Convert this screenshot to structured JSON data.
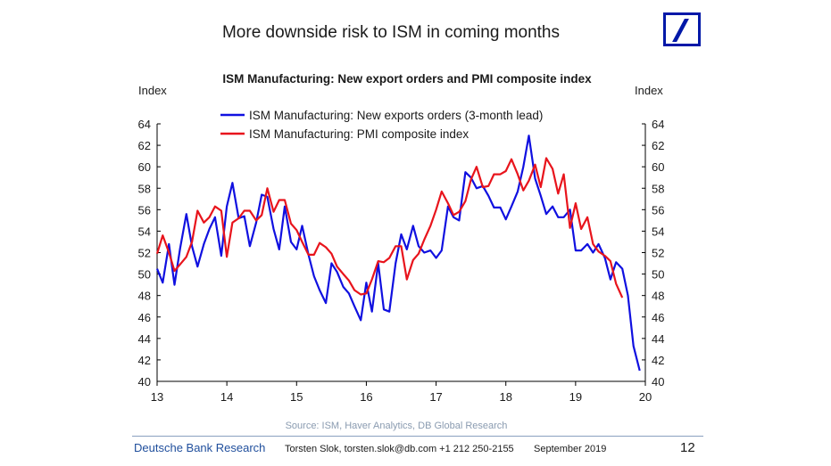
{
  "slide": {
    "title": "More downside risk to ISM in coming months",
    "page_number": "12"
  },
  "footer": {
    "brand": "Deutsche Bank Research",
    "contact": "Torsten Slok, torsten.slok@db.com  +1 212 250-2155",
    "date": "September 2019",
    "source": "Source: ISM, Haver Analytics, DB Global Research"
  },
  "colors": {
    "blue_series": "#1010e0",
    "red_series": "#e8141c",
    "brand_blue": "#0018a8"
  },
  "chart_data": {
    "type": "line",
    "title": "ISM Manufacturing: New export orders and PMI composite index",
    "ylabel_left": "Index",
    "ylabel_right": "Index",
    "ylim": [
      40,
      64
    ],
    "yticks": [
      40,
      42,
      44,
      46,
      48,
      50,
      52,
      54,
      56,
      58,
      60,
      62,
      64
    ],
    "xlim": [
      2013,
      2020
    ],
    "xticks": [
      {
        "value": 2013,
        "label": "13"
      },
      {
        "value": 2014,
        "label": "14"
      },
      {
        "value": 2015,
        "label": "15"
      },
      {
        "value": 2016,
        "label": "16"
      },
      {
        "value": 2017,
        "label": "17"
      },
      {
        "value": 2018,
        "label": "18"
      },
      {
        "value": 2019,
        "label": "19"
      },
      {
        "value": 2020,
        "label": "20"
      }
    ],
    "grid": false,
    "legend_position": "top-left",
    "series": [
      {
        "name": "ISM Manufacturing: New exports orders (3-month lead)",
        "color": "#1010e0",
        "points": [
          [
            2013.0,
            50.5
          ],
          [
            2013.08,
            49.2
          ],
          [
            2013.17,
            52.8
          ],
          [
            2013.25,
            49.0
          ],
          [
            2013.33,
            52.4
          ],
          [
            2013.42,
            55.6
          ],
          [
            2013.5,
            52.6
          ],
          [
            2013.58,
            50.7
          ],
          [
            2013.67,
            52.8
          ],
          [
            2013.75,
            54.2
          ],
          [
            2013.83,
            55.3
          ],
          [
            2013.92,
            51.7
          ],
          [
            2014.0,
            56.3
          ],
          [
            2014.08,
            58.5
          ],
          [
            2014.17,
            55.2
          ],
          [
            2014.25,
            55.4
          ],
          [
            2014.33,
            52.6
          ],
          [
            2014.42,
            54.8
          ],
          [
            2014.5,
            57.4
          ],
          [
            2014.58,
            57.2
          ],
          [
            2014.67,
            54.2
          ],
          [
            2014.75,
            52.3
          ],
          [
            2014.83,
            56.3
          ],
          [
            2014.92,
            53.0
          ],
          [
            2015.0,
            52.3
          ],
          [
            2015.08,
            54.5
          ],
          [
            2015.17,
            51.8
          ],
          [
            2015.25,
            49.8
          ],
          [
            2015.33,
            48.5
          ],
          [
            2015.42,
            47.3
          ],
          [
            2015.5,
            51.0
          ],
          [
            2015.58,
            50.2
          ],
          [
            2015.67,
            48.8
          ],
          [
            2015.75,
            48.2
          ],
          [
            2015.83,
            47.0
          ],
          [
            2015.92,
            45.7
          ],
          [
            2016.0,
            49.2
          ],
          [
            2016.08,
            46.5
          ],
          [
            2016.17,
            51.0
          ],
          [
            2016.25,
            46.7
          ],
          [
            2016.33,
            46.5
          ],
          [
            2016.42,
            51.0
          ],
          [
            2016.5,
            53.7
          ],
          [
            2016.58,
            52.3
          ],
          [
            2016.67,
            54.5
          ],
          [
            2016.75,
            52.6
          ],
          [
            2016.83,
            52.0
          ],
          [
            2016.92,
            52.2
          ],
          [
            2017.0,
            51.5
          ],
          [
            2017.08,
            52.2
          ],
          [
            2017.17,
            56.3
          ],
          [
            2017.25,
            55.3
          ],
          [
            2017.33,
            55.0
          ],
          [
            2017.42,
            59.5
          ],
          [
            2017.5,
            59.0
          ],
          [
            2017.58,
            58.0
          ],
          [
            2017.67,
            58.2
          ],
          [
            2017.75,
            57.3
          ],
          [
            2017.83,
            56.2
          ],
          [
            2017.92,
            56.2
          ],
          [
            2018.0,
            55.1
          ],
          [
            2018.08,
            56.3
          ],
          [
            2018.17,
            57.7
          ],
          [
            2018.25,
            60.0
          ],
          [
            2018.33,
            62.9
          ],
          [
            2018.42,
            58.9
          ],
          [
            2018.5,
            57.3
          ],
          [
            2018.58,
            55.6
          ],
          [
            2018.67,
            56.3
          ],
          [
            2018.75,
            55.3
          ],
          [
            2018.83,
            55.3
          ],
          [
            2018.92,
            56.0
          ],
          [
            2019.0,
            52.2
          ],
          [
            2019.08,
            52.2
          ],
          [
            2019.17,
            52.8
          ],
          [
            2019.25,
            52.0
          ],
          [
            2019.33,
            52.8
          ],
          [
            2019.42,
            51.5
          ],
          [
            2019.5,
            49.5
          ],
          [
            2019.58,
            51.1
          ],
          [
            2019.67,
            50.5
          ],
          [
            2019.75,
            48.0
          ],
          [
            2019.83,
            43.3
          ],
          [
            2019.92,
            41.0
          ]
        ]
      },
      {
        "name": "ISM Manufacturing: PMI composite index",
        "color": "#e8141c",
        "points": [
          [
            2013.0,
            51.9
          ],
          [
            2013.08,
            53.6
          ],
          [
            2013.17,
            52.0
          ],
          [
            2013.25,
            50.3
          ],
          [
            2013.33,
            50.9
          ],
          [
            2013.42,
            51.6
          ],
          [
            2013.5,
            53.0
          ],
          [
            2013.58,
            55.9
          ],
          [
            2013.67,
            54.8
          ],
          [
            2013.75,
            55.3
          ],
          [
            2013.83,
            56.3
          ],
          [
            2013.92,
            55.9
          ],
          [
            2014.0,
            51.6
          ],
          [
            2014.08,
            54.8
          ],
          [
            2014.17,
            55.2
          ],
          [
            2014.25,
            55.9
          ],
          [
            2014.33,
            55.9
          ],
          [
            2014.42,
            55.0
          ],
          [
            2014.5,
            55.5
          ],
          [
            2014.58,
            58.0
          ],
          [
            2014.67,
            55.8
          ],
          [
            2014.75,
            56.9
          ],
          [
            2014.83,
            56.9
          ],
          [
            2014.92,
            54.7
          ],
          [
            2015.0,
            54.1
          ],
          [
            2015.08,
            53.0
          ],
          [
            2015.17,
            51.8
          ],
          [
            2015.25,
            51.8
          ],
          [
            2015.33,
            52.9
          ],
          [
            2015.42,
            52.5
          ],
          [
            2015.5,
            51.9
          ],
          [
            2015.58,
            50.7
          ],
          [
            2015.67,
            50.0
          ],
          [
            2015.75,
            49.4
          ],
          [
            2015.83,
            48.5
          ],
          [
            2015.92,
            48.1
          ],
          [
            2016.0,
            48.2
          ],
          [
            2016.08,
            49.5
          ],
          [
            2016.17,
            51.2
          ],
          [
            2016.25,
            51.1
          ],
          [
            2016.33,
            51.5
          ],
          [
            2016.42,
            52.6
          ],
          [
            2016.5,
            52.6
          ],
          [
            2016.58,
            49.5
          ],
          [
            2016.67,
            51.3
          ],
          [
            2016.75,
            51.9
          ],
          [
            2016.83,
            53.2
          ],
          [
            2016.92,
            54.5
          ],
          [
            2017.0,
            56.0
          ],
          [
            2017.08,
            57.7
          ],
          [
            2017.17,
            56.6
          ],
          [
            2017.25,
            55.5
          ],
          [
            2017.33,
            55.8
          ],
          [
            2017.42,
            56.8
          ],
          [
            2017.5,
            58.8
          ],
          [
            2017.58,
            60.0
          ],
          [
            2017.67,
            58.1
          ],
          [
            2017.75,
            58.2
          ],
          [
            2017.83,
            59.3
          ],
          [
            2017.92,
            59.3
          ],
          [
            2018.0,
            59.6
          ],
          [
            2018.08,
            60.7
          ],
          [
            2018.17,
            59.3
          ],
          [
            2018.25,
            57.8
          ],
          [
            2018.33,
            58.7
          ],
          [
            2018.42,
            60.2
          ],
          [
            2018.5,
            58.1
          ],
          [
            2018.58,
            60.8
          ],
          [
            2018.67,
            59.8
          ],
          [
            2018.75,
            57.5
          ],
          [
            2018.83,
            59.3
          ],
          [
            2018.92,
            54.3
          ],
          [
            2019.0,
            56.6
          ],
          [
            2019.08,
            54.2
          ],
          [
            2019.17,
            55.3
          ],
          [
            2019.25,
            52.8
          ],
          [
            2019.33,
            52.1
          ],
          [
            2019.42,
            51.7
          ],
          [
            2019.5,
            51.2
          ],
          [
            2019.58,
            49.1
          ],
          [
            2019.67,
            47.8
          ]
        ]
      }
    ]
  }
}
